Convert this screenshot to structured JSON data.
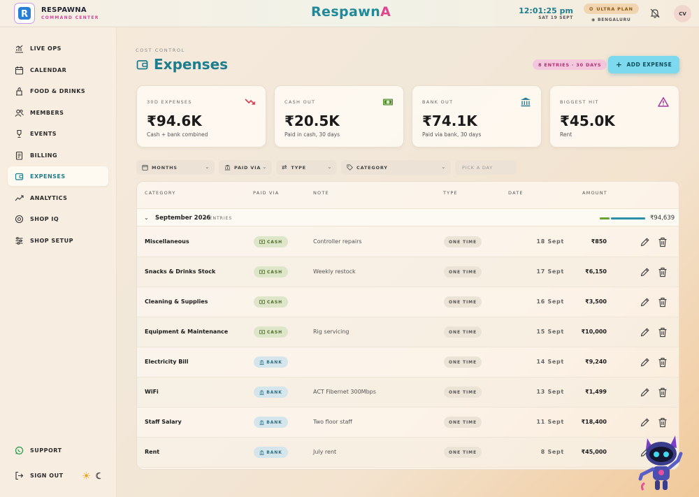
{
  "brand": {
    "name": "RESPAWNA",
    "subtitle": "COMMAND CENTER",
    "logo_letter": "R",
    "center_logo_main": "Respawn",
    "center_logo_accent": "A"
  },
  "header": {
    "time": "12:01:25 pm",
    "date": "SAT 19 SEPT",
    "plan": "ULTRA PLAN",
    "location": "BENGALURU",
    "avatar": "CV",
    "icons": [
      "bell-off-icon",
      "star-icon",
      "pin-icon"
    ]
  },
  "sidebar": {
    "items": [
      {
        "label": "LIVE OPS",
        "icon": "chart-bars-icon"
      },
      {
        "label": "CALENDAR",
        "icon": "calendar-icon"
      },
      {
        "label": "FOOD & DRINKS",
        "icon": "food-icon"
      },
      {
        "label": "MEMBERS",
        "icon": "members-icon"
      },
      {
        "label": "EVENTS",
        "icon": "trophy-icon"
      },
      {
        "label": "BILLING",
        "icon": "receipt-icon"
      },
      {
        "label": "EXPENSES",
        "icon": "wallet-icon",
        "active": true
      },
      {
        "label": "ANALYTICS",
        "icon": "trend-icon"
      },
      {
        "label": "SHOP IQ",
        "icon": "brain-icon"
      },
      {
        "label": "SHOP SETUP",
        "icon": "sliders-icon"
      }
    ],
    "support": "SUPPORT",
    "signout": "SIGN OUT"
  },
  "page": {
    "eyebrow": "COST CONTROL",
    "title": "Expenses",
    "entries_badge": "8 ENTRIES · 30 DAYS",
    "add_button": "ADD EXPENSE"
  },
  "stats": [
    {
      "label": "30D EXPENSES",
      "value": "₹94.6K",
      "sub": "Cash + bank combined",
      "icon": "trend-down-icon",
      "color": "#d63b4a"
    },
    {
      "label": "CASH OUT",
      "value": "₹20.5K",
      "sub": "Paid in cash, 30 days",
      "icon": "cash-icon",
      "color": "#4c8a2a"
    },
    {
      "label": "BANK OUT",
      "value": "₹74.1K",
      "sub": "Paid via bank, 30 days",
      "icon": "bank-icon",
      "color": "#2c7d92"
    },
    {
      "label": "BIGGEST HIT",
      "value": "₹45.0K",
      "sub": "Rent",
      "icon": "warning-icon",
      "color": "#a63aa0"
    }
  ],
  "filters": {
    "months": "MONTHS",
    "paid_via": "PAID VIA",
    "type": "TYPE",
    "category": "CATEGORY",
    "day_placeholder": "PICK A DAY"
  },
  "table": {
    "columns": [
      "CATEGORY",
      "PAID VIA",
      "NOTE",
      "TYPE",
      "DATE",
      "AMOUNT"
    ],
    "group": {
      "title": "September 2026",
      "count": "8 ENTRIES",
      "total": "₹94,639",
      "cash_share": 0.22
    },
    "rows": [
      {
        "category": "Miscellaneous",
        "mode": "CASH",
        "note": "Controller repairs",
        "type": "ONE TIME",
        "date": "18 Sept",
        "amount": "₹850"
      },
      {
        "category": "Snacks & Drinks Stock",
        "mode": "CASH",
        "note": "Weekly restock",
        "type": "ONE TIME",
        "date": "17 Sept",
        "amount": "₹6,150"
      },
      {
        "category": "Cleaning & Supplies",
        "mode": "CASH",
        "note": "",
        "type": "ONE TIME",
        "date": "16 Sept",
        "amount": "₹3,500"
      },
      {
        "category": "Equipment & Maintenance",
        "mode": "CASH",
        "note": "Rig servicing",
        "type": "ONE TIME",
        "date": "15 Sept",
        "amount": "₹10,000"
      },
      {
        "category": "Electricity Bill",
        "mode": "BANK",
        "note": "",
        "type": "ONE TIME",
        "date": "14 Sept",
        "amount": "₹9,240"
      },
      {
        "category": "WiFi",
        "mode": "BANK",
        "note": "ACT Fibernet 300Mbps",
        "type": "ONE TIME",
        "date": "13 Sept",
        "amount": "₹1,499"
      },
      {
        "category": "Staff Salary",
        "mode": "BANK",
        "note": "Two floor staff",
        "type": "ONE TIME",
        "date": "11 Sept",
        "amount": "₹18,400"
      },
      {
        "category": "Rent",
        "mode": "BANK",
        "note": "July rent",
        "type": "ONE TIME",
        "date": "8 Sept",
        "amount": "₹45,000"
      }
    ]
  },
  "colors": {
    "accent": "#1e7d8d",
    "pink": "#e0468f",
    "cash": "#4c8a2a",
    "bank": "#2c7d92"
  }
}
